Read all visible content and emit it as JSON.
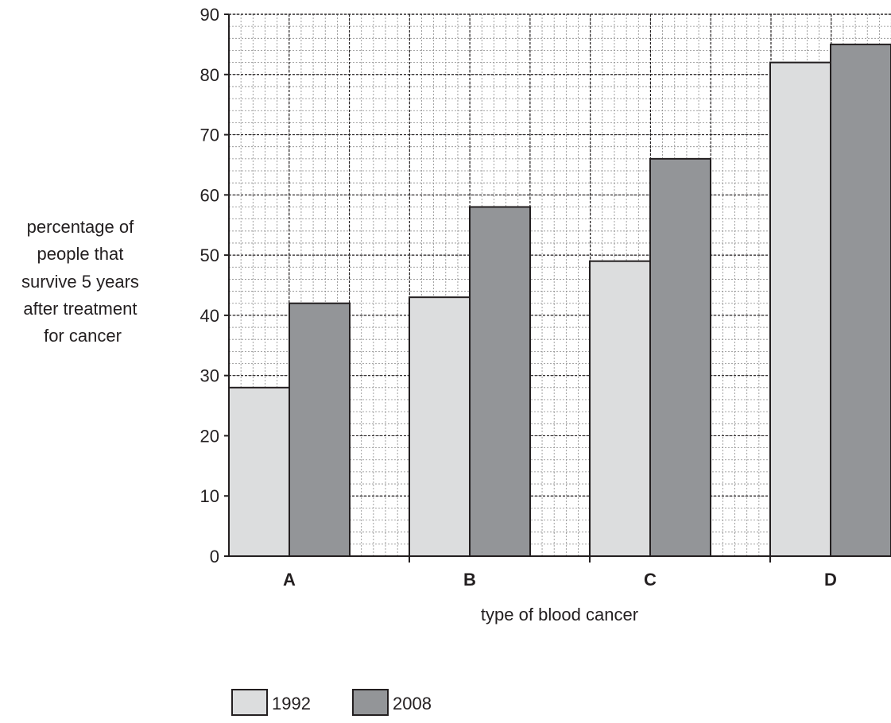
{
  "chart_data": {
    "type": "bar",
    "title": "",
    "xlabel": "type of blood cancer",
    "ylabel_lines": [
      "percentage of",
      "people that",
      "survive 5 years",
      "after treatment",
      "for cancer"
    ],
    "categories": [
      "A",
      "B",
      "C",
      "D"
    ],
    "series": [
      {
        "name": "1992",
        "values": [
          28,
          43,
          49,
          82
        ],
        "color": "#dcddde"
      },
      {
        "name": "2008",
        "values": [
          42,
          58,
          66,
          85
        ],
        "color": "#939598"
      }
    ],
    "ylim": [
      0,
      90
    ],
    "yticks": [
      "0",
      "10",
      "20",
      "30",
      "40",
      "50",
      "60",
      "70",
      "80",
      "90"
    ],
    "grid": "on (fine dotted grid, 2 minor lines per 10 units)",
    "legend_position": "bottom-center"
  }
}
